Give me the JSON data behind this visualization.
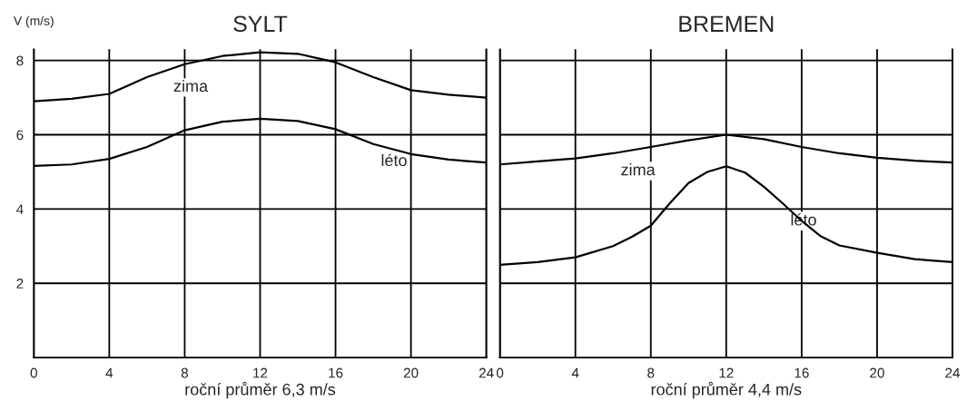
{
  "chart_data": [
    {
      "type": "line",
      "title": "SYLT",
      "ylabel": "V (m/s)",
      "xlabel": "roční průměr 6,3 m/s",
      "x": [
        0,
        2,
        4,
        6,
        8,
        10,
        12,
        14,
        16,
        18,
        20,
        22,
        24
      ],
      "xlim": [
        0,
        24
      ],
      "xticks": [
        0,
        4,
        8,
        12,
        16,
        20,
        24
      ],
      "ylim": [
        0,
        8.3
      ],
      "yticks": [
        2,
        4,
        6,
        8
      ],
      "grid": true,
      "marker": "none",
      "line_style": "solid",
      "series": [
        {
          "color": "#000000",
          "values": [
            6.9,
            6.97,
            7.1,
            7.55,
            7.9,
            8.12,
            8.22,
            8.18,
            7.95,
            7.55,
            7.2,
            7.08,
            7.0
          ]
        },
        {
          "color": "#000000",
          "values": [
            5.16,
            5.2,
            5.35,
            5.67,
            6.12,
            6.35,
            6.43,
            6.37,
            6.15,
            5.75,
            5.48,
            5.33,
            5.25
          ]
        }
      ],
      "annotations": [
        {
          "text": "zima",
          "x": 7,
          "y": 7.75
        },
        {
          "text": "léto",
          "x": 18,
          "y": 5.75
        }
      ]
    },
    {
      "type": "line",
      "title": "BREMEN",
      "xlabel": "roční průměr 4,4 m/s",
      "tick_labels": "x",
      "xlim": [
        0,
        24
      ],
      "xticks": [
        0,
        4,
        8,
        12,
        16,
        20,
        24
      ],
      "ylim": [
        0,
        8.3
      ],
      "yticks": [
        2,
        4,
        6,
        8
      ],
      "grid": true,
      "marker": "none",
      "line_style": "solid",
      "series": [
        {
          "color": "#000000",
          "x": [
            0,
            2,
            4,
            6,
            8,
            10,
            12,
            14,
            16,
            18,
            20,
            22,
            24
          ],
          "values": [
            5.2,
            5.28,
            5.36,
            5.5,
            5.67,
            5.85,
            6.0,
            5.88,
            5.67,
            5.5,
            5.38,
            5.3,
            5.25
          ]
        },
        {
          "color": "#000000",
          "x": [
            0,
            2,
            4,
            6,
            7,
            8,
            9,
            10,
            11,
            12,
            13,
            14,
            15,
            16,
            17,
            18,
            20,
            22,
            24
          ],
          "values": [
            2.5,
            2.57,
            2.7,
            3.0,
            3.25,
            3.55,
            4.15,
            4.7,
            5.0,
            5.15,
            4.98,
            4.6,
            4.15,
            3.68,
            3.27,
            3.02,
            2.82,
            2.65,
            2.57
          ]
        }
      ],
      "annotations": [
        {
          "text": "zima",
          "x": 6,
          "y": 5.5
        },
        {
          "text": "léto",
          "x": 15,
          "y": 4.15
        }
      ]
    }
  ]
}
